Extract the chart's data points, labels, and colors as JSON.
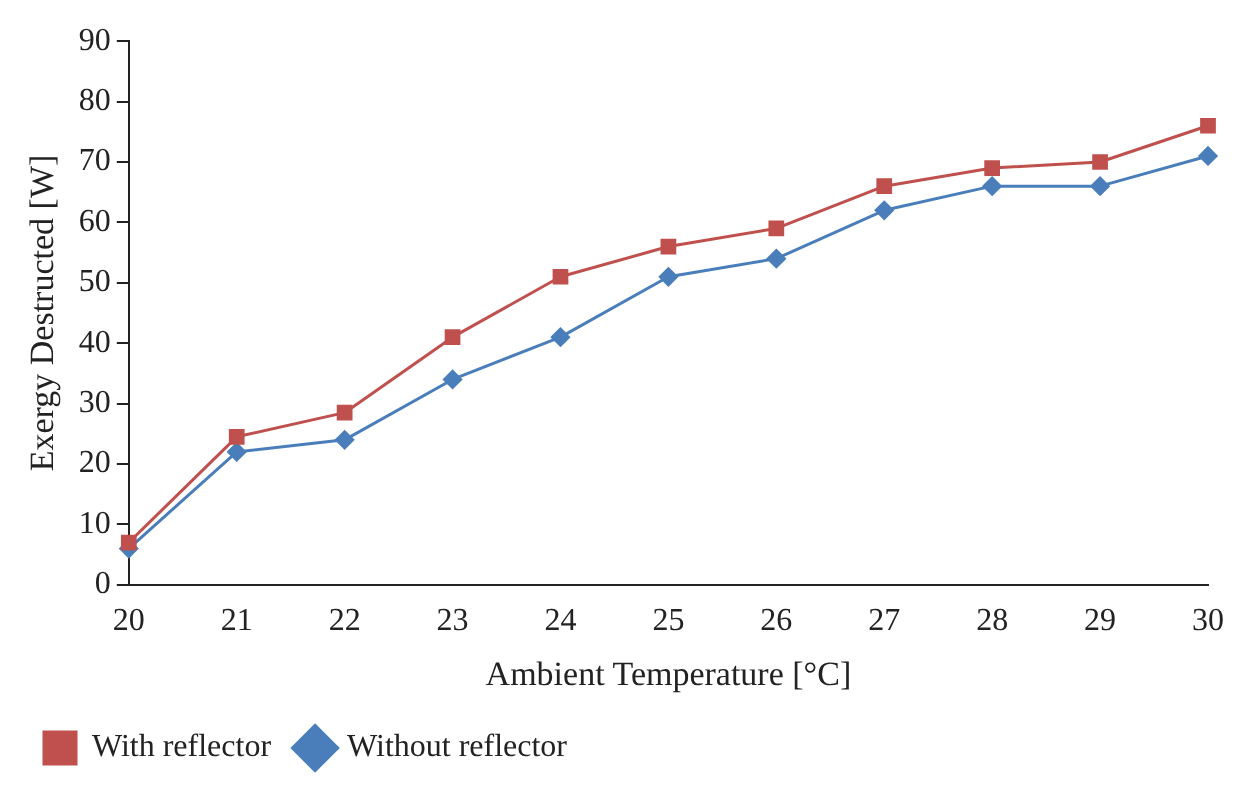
{
  "chart_data": {
    "type": "line",
    "xlabel": "Ambient Temperature [°C]",
    "ylabel": "Exergy Destructed [W]",
    "categories": [
      "20",
      "21",
      "22",
      "23",
      "24",
      "25",
      "26",
      "27",
      "28",
      "29",
      "30"
    ],
    "ylim": [
      0,
      90
    ],
    "yticks": [
      0,
      10,
      20,
      30,
      40,
      50,
      60,
      70,
      80,
      90
    ],
    "grid": false,
    "legend": "bottom left",
    "series": [
      {
        "name": "Without reflector",
        "color": "#4a7ebb",
        "marker": "diamond",
        "values": [
          6,
          22,
          24,
          34,
          41,
          51,
          54,
          62,
          66,
          66,
          71
        ]
      },
      {
        "name": "With reflector",
        "color": "#c0504d",
        "marker": "square",
        "values": [
          7,
          24.5,
          28.5,
          41,
          51,
          56,
          59,
          66,
          69,
          70,
          76
        ]
      }
    ]
  }
}
